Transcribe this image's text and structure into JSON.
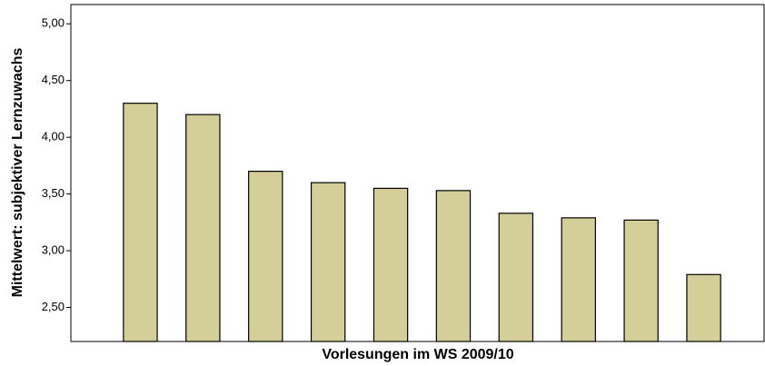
{
  "chart_data": {
    "type": "bar",
    "y_label": "Mittelwert: subjektiver Lernzuwachs",
    "x_label": "Vorlesungen im WS 2009/10",
    "categories": [
      null,
      null,
      null,
      null,
      null,
      null,
      null,
      null,
      null,
      null
    ],
    "values": [
      4.3,
      4.2,
      3.7,
      3.6,
      3.55,
      3.53,
      3.33,
      3.29,
      3.27,
      2.79
    ],
    "color": "#d4cf99",
    "ylim": [
      2.2,
      5.17
    ],
    "yticks": [
      {
        "value": 2.5,
        "label": "2,50"
      },
      {
        "value": 3,
        "label": "3,00"
      },
      {
        "value": 3.5,
        "label": "3,50"
      },
      {
        "value": 4,
        "label": "4,00"
      },
      {
        "value": 4.5,
        "label": "4,50"
      },
      {
        "value": 5,
        "label": "5,00"
      }
    ],
    "grid": false
  }
}
